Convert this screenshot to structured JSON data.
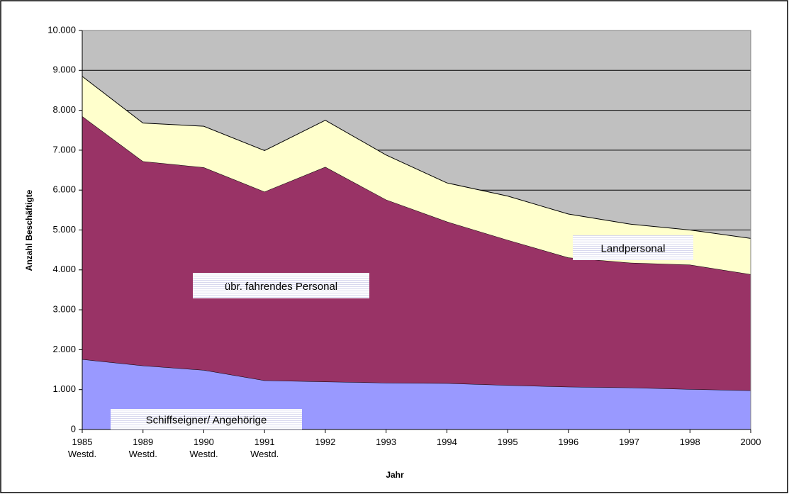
{
  "chart_data": {
    "type": "stacked-area",
    "x_label": "Jahr",
    "y_label": "Anzahl Beschäftigte",
    "categories": [
      "1985\nWestd.",
      "1989\nWestd.",
      "1990\nWestd.",
      "1991\nWestd.",
      "1992",
      "1993",
      "1994",
      "1995",
      "1996",
      "1997",
      "1998",
      "2000"
    ],
    "series": [
      {
        "name": "Schiffseigner/ Angehörige",
        "color": "#9999ff",
        "values": [
          1760,
          1600,
          1490,
          1230,
          1200,
          1170,
          1160,
          1110,
          1070,
          1050,
          1010,
          980
        ]
      },
      {
        "name": "übr. fahrendes Personal",
        "color": "#993366",
        "values": [
          6090,
          5120,
          5080,
          4730,
          5380,
          4590,
          4050,
          3640,
          3240,
          3130,
          3120,
          2910
        ]
      },
      {
        "name": "Landpersonal",
        "color": "#ffffcc",
        "values": [
          1000,
          960,
          1030,
          1030,
          1170,
          1120,
          970,
          1100,
          1090,
          970,
          870,
          900
        ]
      }
    ],
    "ylim": [
      0,
      10000
    ],
    "yticks": [
      0,
      {
        "value": 1000,
        "label": "1.000"
      },
      {
        "value": 2000,
        "label": "2.000"
      },
      {
        "value": 3000,
        "label": "3.000"
      },
      {
        "value": 4000,
        "label": "4.000"
      },
      {
        "value": 5000,
        "label": "5.000"
      },
      {
        "value": 6000,
        "label": "6.000"
      },
      {
        "value": 7000,
        "label": "7.000"
      },
      {
        "value": 8000,
        "label": "8.000"
      },
      {
        "value": 9000,
        "label": "9.000"
      },
      {
        "value": 10000,
        "label": "10.000"
      }
    ],
    "grid": true,
    "plot_background": "#c0c0c0"
  }
}
